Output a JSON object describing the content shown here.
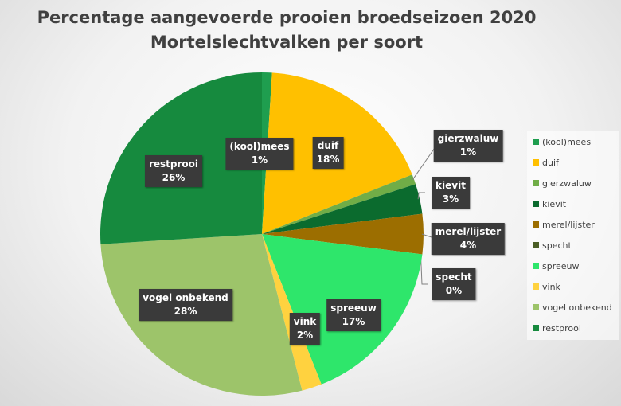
{
  "chart_data": {
    "type": "pie",
    "title": "Percentage aangevoerde prooien broedseizoen 2020",
    "subtitle": "Mortelslechtvalken per soort",
    "legend_position": "right",
    "slices": [
      {
        "label": "(kool)mees",
        "value": 1,
        "display": "1%",
        "color": "#1f9e4f"
      },
      {
        "label": "duif",
        "value": 18,
        "display": "18%",
        "color": "#ffc000"
      },
      {
        "label": "gierzwaluw",
        "value": 1,
        "display": "1%",
        "color": "#70ad47"
      },
      {
        "label": "kievit",
        "value": 3,
        "display": "3%",
        "color": "#0b6b2e"
      },
      {
        "label": "merel/lijster",
        "value": 4,
        "display": "4%",
        "color": "#9c6e00"
      },
      {
        "label": "specht",
        "value": 0,
        "display": "0%",
        "color": "#4b5e26"
      },
      {
        "label": "spreeuw",
        "value": 17,
        "display": "17%",
        "color": "#2ee66b"
      },
      {
        "label": "vink",
        "value": 2,
        "display": "2%",
        "color": "#ffd23f"
      },
      {
        "label": "vogel onbekend",
        "value": 28,
        "display": "28%",
        "color": "#9dc46a"
      },
      {
        "label": "restprooi",
        "value": 26,
        "display": "26%",
        "color": "#168a3e"
      }
    ]
  }
}
